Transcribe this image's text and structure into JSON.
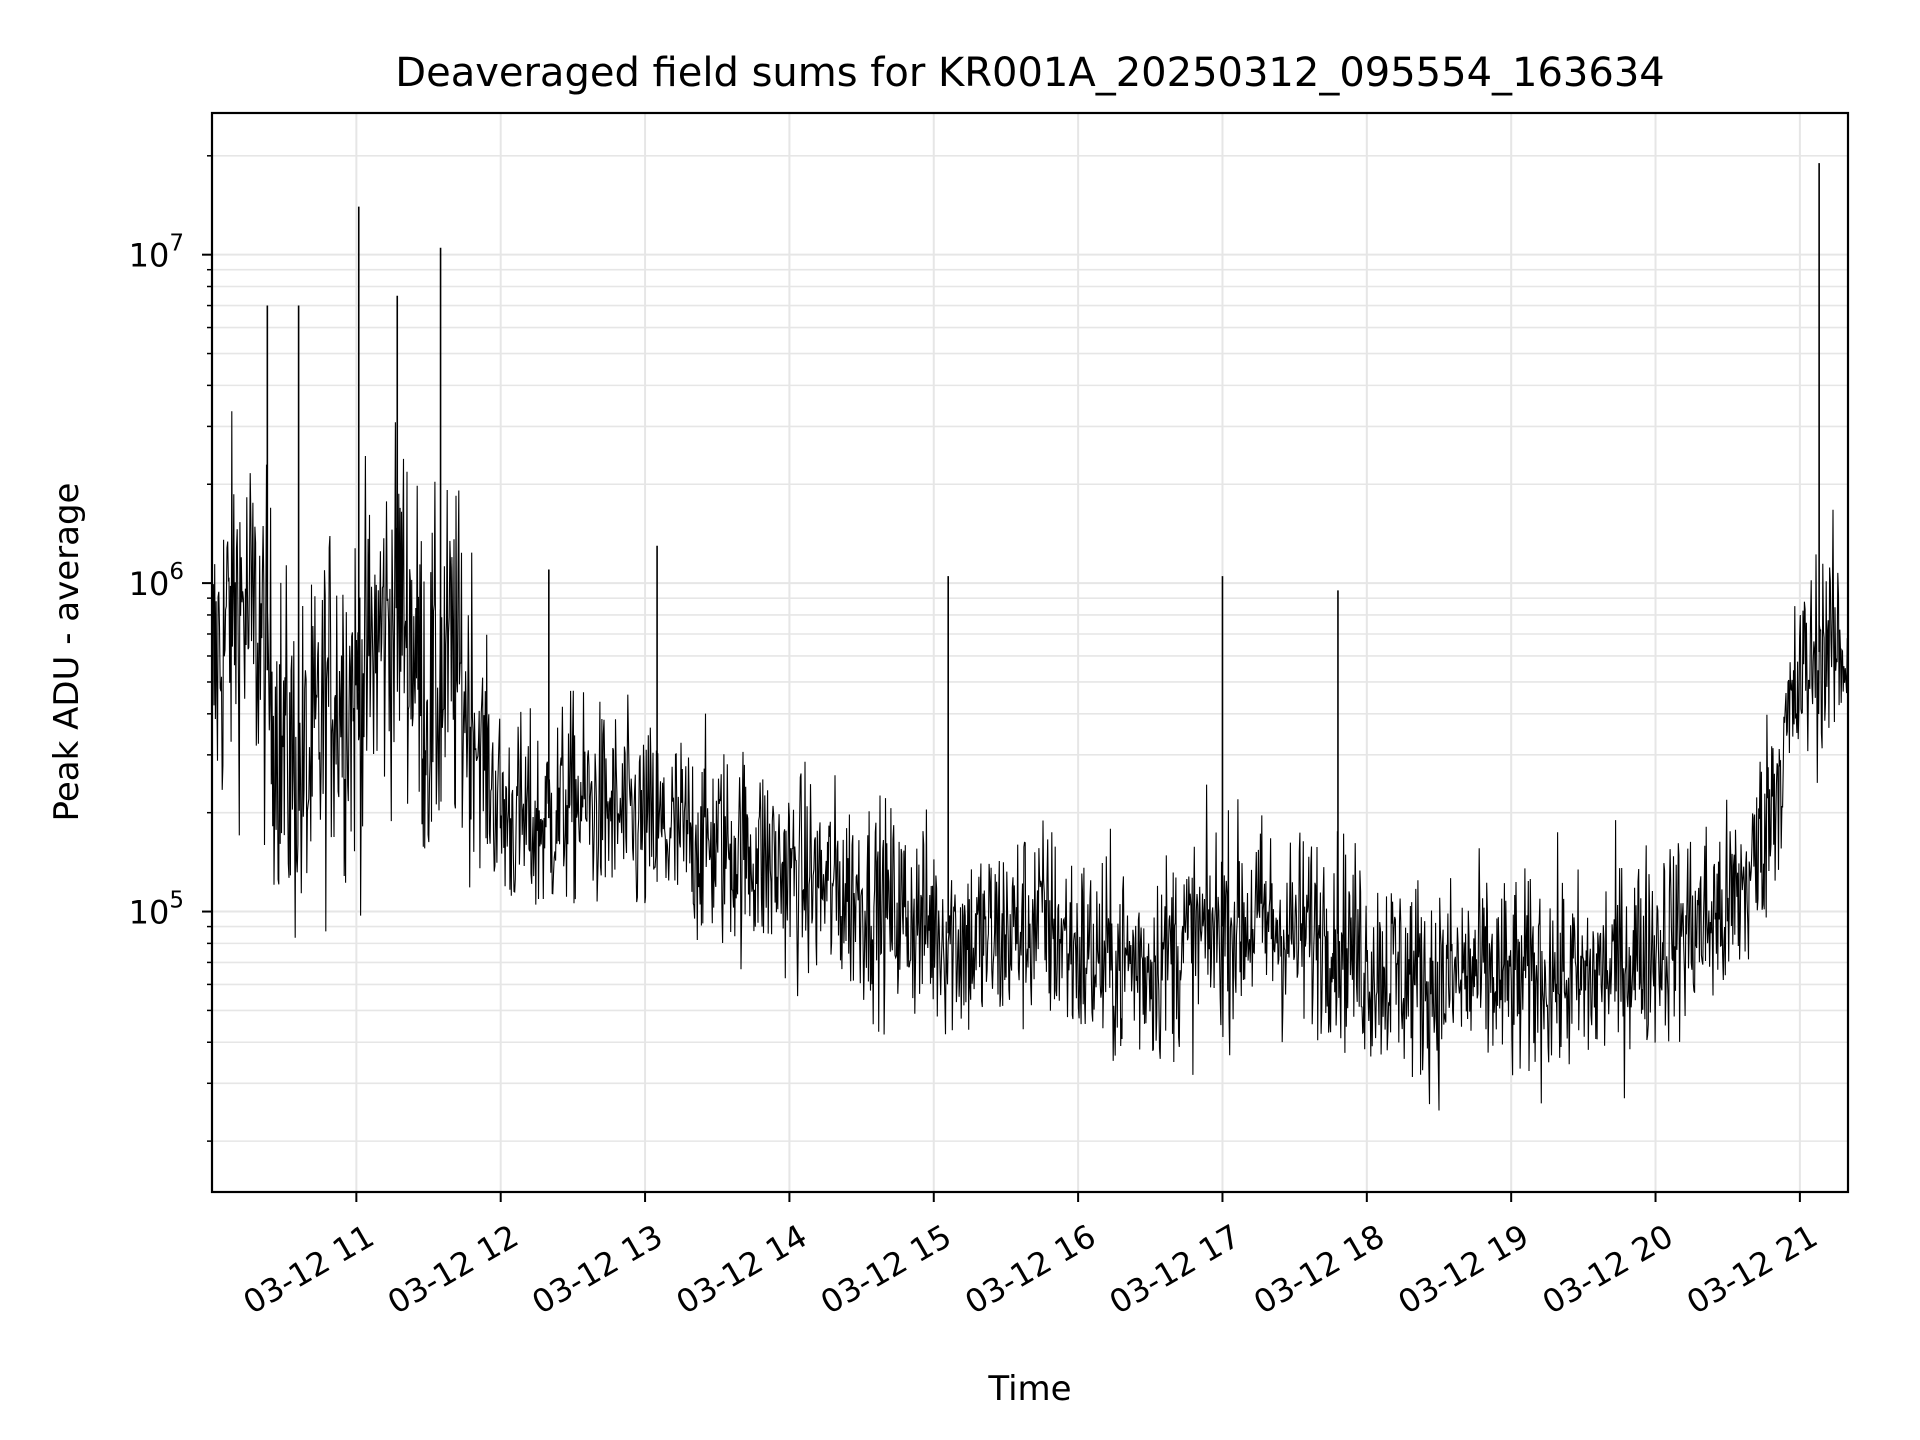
{
  "chart_data": {
    "type": "line",
    "title": "Deaveraged field sums for KR001A_20250312_095554_163634",
    "xlabel": "Time",
    "ylabel": "Peak ADU - average",
    "y_scale": "log",
    "ylim": [
      14000,
      27000000
    ],
    "xlim": [
      "2025-03-12 10:00",
      "2025-03-12 21:20"
    ],
    "x_tick_labels": [
      "03-12 11",
      "03-12 12",
      "03-12 13",
      "03-12 14",
      "03-12 15",
      "03-12 16",
      "03-12 17",
      "03-12 18",
      "03-12 19",
      "03-12 20",
      "03-12 21"
    ],
    "x_ticks": [
      "2025-03-12 11:00",
      "2025-03-12 12:00",
      "2025-03-12 13:00",
      "2025-03-12 14:00",
      "2025-03-12 15:00",
      "2025-03-12 16:00",
      "2025-03-12 17:00",
      "2025-03-12 18:00",
      "2025-03-12 19:00",
      "2025-03-12 20:00",
      "2025-03-12 21:00"
    ],
    "y_ticks": [
      {
        "value": 100000,
        "base": "10",
        "exp": "5"
      },
      {
        "value": 1000000,
        "base": "10",
        "exp": "6"
      },
      {
        "value": 10000000,
        "base": "10",
        "exp": "7"
      }
    ],
    "grid": true,
    "line_color": "#000000",
    "grid_color": "#e6e6e6",
    "series": [
      {
        "x": [
          "2025-03-12 10:00",
          "2025-03-12 10:10",
          "2025-03-12 10:20",
          "2025-03-12 10:30",
          "2025-03-12 10:40",
          "2025-03-12 10:50",
          "2025-03-12 11:00",
          "2025-03-12 11:10",
          "2025-03-12 11:20",
          "2025-03-12 11:30",
          "2025-03-12 11:40",
          "2025-03-12 11:50",
          "2025-03-12 12:00",
          "2025-03-12 12:15",
          "2025-03-12 12:30",
          "2025-03-12 12:45",
          "2025-03-12 13:00",
          "2025-03-12 13:15",
          "2025-03-12 13:30",
          "2025-03-12 13:45",
          "2025-03-12 14:00",
          "2025-03-12 14:15",
          "2025-03-12 14:30",
          "2025-03-12 14:45",
          "2025-03-12 15:00",
          "2025-03-12 15:15",
          "2025-03-12 15:30",
          "2025-03-12 15:45",
          "2025-03-12 16:00",
          "2025-03-12 16:15",
          "2025-03-12 16:30",
          "2025-03-12 16:45",
          "2025-03-12 17:00",
          "2025-03-12 17:15",
          "2025-03-12 17:30",
          "2025-03-12 17:45",
          "2025-03-12 18:00",
          "2025-03-12 18:15",
          "2025-03-12 18:30",
          "2025-03-12 18:45",
          "2025-03-12 19:00",
          "2025-03-12 19:15",
          "2025-03-12 19:30",
          "2025-03-12 19:45",
          "2025-03-12 20:00",
          "2025-03-12 20:15",
          "2025-03-12 20:30",
          "2025-03-12 20:40",
          "2025-03-12 20:50",
          "2025-03-12 21:00",
          "2025-03-12 21:10",
          "2025-03-12 21:20"
        ],
        "y": [
          500000,
          900000,
          700000,
          300000,
          250000,
          500000,
          450000,
          700000,
          900000,
          400000,
          600000,
          350000,
          200000,
          180000,
          220000,
          200000,
          180000,
          170000,
          160000,
          150000,
          130000,
          120000,
          110000,
          100000,
          90000,
          80000,
          85000,
          95000,
          75000,
          70000,
          70000,
          80000,
          90000,
          95000,
          85000,
          90000,
          70000,
          65000,
          60000,
          65000,
          60000,
          65000,
          60000,
          70000,
          80000,
          90000,
          100000,
          130000,
          250000,
          500000,
          650000,
          600000
        ]
      }
    ],
    "spikes": [
      {
        "x": "2025-03-12 10:23",
        "y": 7000000
      },
      {
        "x": "2025-03-12 10:36",
        "y": 7000000
      },
      {
        "x": "2025-03-12 11:01",
        "y": 14000000
      },
      {
        "x": "2025-03-12 11:17",
        "y": 7500000
      },
      {
        "x": "2025-03-12 11:35",
        "y": 10500000
      },
      {
        "x": "2025-03-12 12:20",
        "y": 1100000
      },
      {
        "x": "2025-03-12 13:05",
        "y": 1300000
      },
      {
        "x": "2025-03-12 15:06",
        "y": 1050000
      },
      {
        "x": "2025-03-12 17:00",
        "y": 1050000
      },
      {
        "x": "2025-03-12 17:48",
        "y": 950000
      },
      {
        "x": "2025-03-12 21:08",
        "y": 19000000
      }
    ]
  }
}
